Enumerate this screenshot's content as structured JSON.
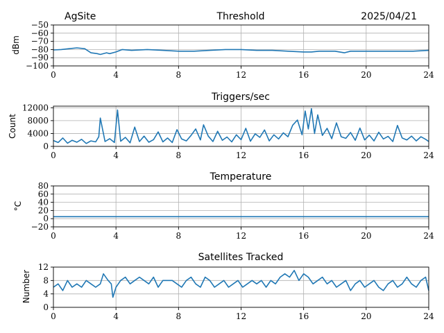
{
  "header": {
    "site": "AgSite",
    "date": "2025/04/21"
  },
  "colors": {
    "series": "#1f77b4",
    "grid": "#b0b0b0"
  },
  "chart_data": [
    {
      "type": "line",
      "title": "Threshold",
      "xlabel": "",
      "ylabel": "dBm",
      "xlim": [
        0,
        24
      ],
      "ylim": [
        -100,
        -50
      ],
      "x_ticks": [
        "0",
        "4",
        "8",
        "12",
        "16",
        "20",
        "24"
      ],
      "y_ticks": [
        "−50",
        "−60",
        "−70",
        "−80",
        "−90",
        "−100"
      ],
      "y_tick_values": [
        -50,
        -60,
        -70,
        -80,
        -90,
        -100
      ],
      "grid": true,
      "series": [
        {
          "x": [
            0,
            0.5,
            1.0,
            1.5,
            2.0,
            2.4,
            2.8,
            3.0,
            3.4,
            3.6,
            4.0,
            4.4,
            5.0,
            6.0,
            7.0,
            8.0,
            9.0,
            10.0,
            11.0,
            12.0,
            13.0,
            14.0,
            15.0,
            16.0,
            16.5,
            17.0,
            18.0,
            18.6,
            19.0,
            20.0,
            21.0,
            22.0,
            23.0,
            24.0
          ],
          "y": [
            -80.5,
            -80,
            -79,
            -78,
            -79,
            -84,
            -85,
            -86,
            -84,
            -85,
            -83,
            -80,
            -81,
            -80,
            -81,
            -82,
            -82,
            -81,
            -80,
            -80,
            -81,
            -81,
            -82,
            -83,
            -83,
            -82,
            -82,
            -84,
            -82,
            -82,
            -82,
            -82,
            -82,
            -81
          ]
        }
      ]
    },
    {
      "type": "line",
      "title": "Triggers/sec",
      "xlabel": "",
      "ylabel": "Count",
      "xlim": [
        0,
        24
      ],
      "ylim": [
        0,
        12500
      ],
      "x_ticks": [
        "0",
        "4",
        "8",
        "12",
        "16",
        "20",
        "24"
      ],
      "y_ticks": [
        "12000",
        "8000",
        "4000",
        "0"
      ],
      "y_tick_values": [
        12000,
        8000,
        4000,
        0
      ],
      "grid": true,
      "series": [
        {
          "x": [
            0,
            0.3,
            0.6,
            0.9,
            1.2,
            1.5,
            1.8,
            2.1,
            2.4,
            2.7,
            2.9,
            3.0,
            3.3,
            3.6,
            3.9,
            4.1,
            4.3,
            4.6,
            4.9,
            5.2,
            5.5,
            5.8,
            6.1,
            6.4,
            6.7,
            7.0,
            7.3,
            7.6,
            7.9,
            8.2,
            8.5,
            8.8,
            9.1,
            9.4,
            9.6,
            9.9,
            10.2,
            10.5,
            10.8,
            11.1,
            11.4,
            11.7,
            12.0,
            12.3,
            12.6,
            12.9,
            13.2,
            13.5,
            13.8,
            14.1,
            14.4,
            14.7,
            15.0,
            15.3,
            15.6,
            15.9,
            16.1,
            16.3,
            16.5,
            16.7,
            16.9,
            17.2,
            17.5,
            17.8,
            18.1,
            18.4,
            18.7,
            19.0,
            19.3,
            19.6,
            19.9,
            20.2,
            20.5,
            20.8,
            21.1,
            21.4,
            21.7,
            22.0,
            22.3,
            22.6,
            22.9,
            23.2,
            23.5,
            23.8,
            24.0
          ],
          "y": [
            1800,
            1200,
            2600,
            1000,
            1900,
            1300,
            2200,
            900,
            1700,
            1400,
            3000,
            8800,
            1500,
            2400,
            1200,
            11300,
            1600,
            2800,
            1100,
            6000,
            1500,
            3200,
            1300,
            2100,
            4500,
            1400,
            2600,
            1200,
            5200,
            2300,
            1700,
            3400,
            5400,
            2000,
            6700,
            3200,
            1500,
            4700,
            1900,
            2900,
            1400,
            3600,
            2100,
            5600,
            1600,
            3900,
            2800,
            5100,
            1700,
            3600,
            2300,
            4200,
            3000,
            6600,
            8200,
            3600,
            11000,
            5400,
            11700,
            4000,
            9800,
            3400,
            5600,
            2400,
            7300,
            3000,
            2500,
            4300,
            1900,
            5700,
            2000,
            3500,
            1700,
            4400,
            2300,
            3100,
            1500,
            6500,
            2600,
            2000,
            3200,
            1700,
            3000,
            2200,
            1500
          ]
        }
      ]
    },
    {
      "type": "line",
      "title": "Temperature",
      "xlabel": "",
      "ylabel": "°C",
      "xlim": [
        0,
        24
      ],
      "ylim": [
        -20,
        80
      ],
      "x_ticks": [
        "0",
        "4",
        "8",
        "12",
        "16",
        "20",
        "24"
      ],
      "y_ticks": [
        "80",
        "60",
        "40",
        "20",
        "0",
        "−20"
      ],
      "y_tick_values": [
        80,
        60,
        40,
        20,
        0,
        -20
      ],
      "grid": true,
      "series": [
        {
          "x": [
            0,
            24
          ],
          "y": [
            5,
            5
          ]
        }
      ]
    },
    {
      "type": "line",
      "title": "Satellites Tracked",
      "xlabel": "",
      "ylabel": "Number",
      "xlim": [
        0,
        24
      ],
      "ylim": [
        0,
        12
      ],
      "x_ticks": [
        "0",
        "4",
        "8",
        "12",
        "16",
        "20",
        "24"
      ],
      "y_ticks": [
        "12",
        "8",
        "4",
        "0"
      ],
      "y_tick_values": [
        12,
        8,
        4,
        0
      ],
      "grid": true,
      "series": [
        {
          "x": [
            0,
            0.3,
            0.6,
            0.9,
            1.2,
            1.5,
            1.8,
            2.1,
            2.4,
            2.7,
            3.0,
            3.2,
            3.5,
            3.7,
            3.8,
            4.0,
            4.3,
            4.6,
            4.9,
            5.2,
            5.5,
            5.8,
            6.1,
            6.4,
            6.7,
            7.0,
            7.3,
            7.6,
            7.9,
            8.2,
            8.5,
            8.8,
            9.1,
            9.4,
            9.7,
            10.0,
            10.3,
            10.6,
            10.9,
            11.2,
            11.5,
            11.8,
            12.1,
            12.4,
            12.7,
            13.0,
            13.3,
            13.6,
            13.9,
            14.2,
            14.5,
            14.8,
            15.1,
            15.4,
            15.7,
            16.0,
            16.3,
            16.6,
            16.9,
            17.2,
            17.5,
            17.8,
            18.1,
            18.4,
            18.7,
            19.0,
            19.3,
            19.6,
            19.9,
            20.2,
            20.5,
            20.8,
            21.1,
            21.4,
            21.7,
            22.0,
            22.3,
            22.6,
            22.9,
            23.2,
            23.5,
            23.8,
            24.0
          ],
          "y": [
            6,
            7,
            5,
            8,
            6,
            7,
            6,
            8,
            7,
            6,
            7,
            10,
            8,
            7,
            3,
            6,
            8,
            9,
            7,
            8,
            9,
            8,
            7,
            9,
            6,
            8,
            8,
            8,
            7,
            6,
            8,
            9,
            7,
            6,
            9,
            8,
            6,
            7,
            8,
            6,
            7,
            8,
            6,
            7,
            8,
            7,
            8,
            6,
            8,
            7,
            9,
            10,
            9,
            11,
            8,
            10,
            9,
            7,
            8,
            9,
            7,
            8,
            6,
            7,
            8,
            5,
            7,
            8,
            6,
            7,
            8,
            6,
            5,
            7,
            8,
            6,
            7,
            9,
            7,
            6,
            8,
            9,
            5
          ]
        }
      ]
    }
  ]
}
